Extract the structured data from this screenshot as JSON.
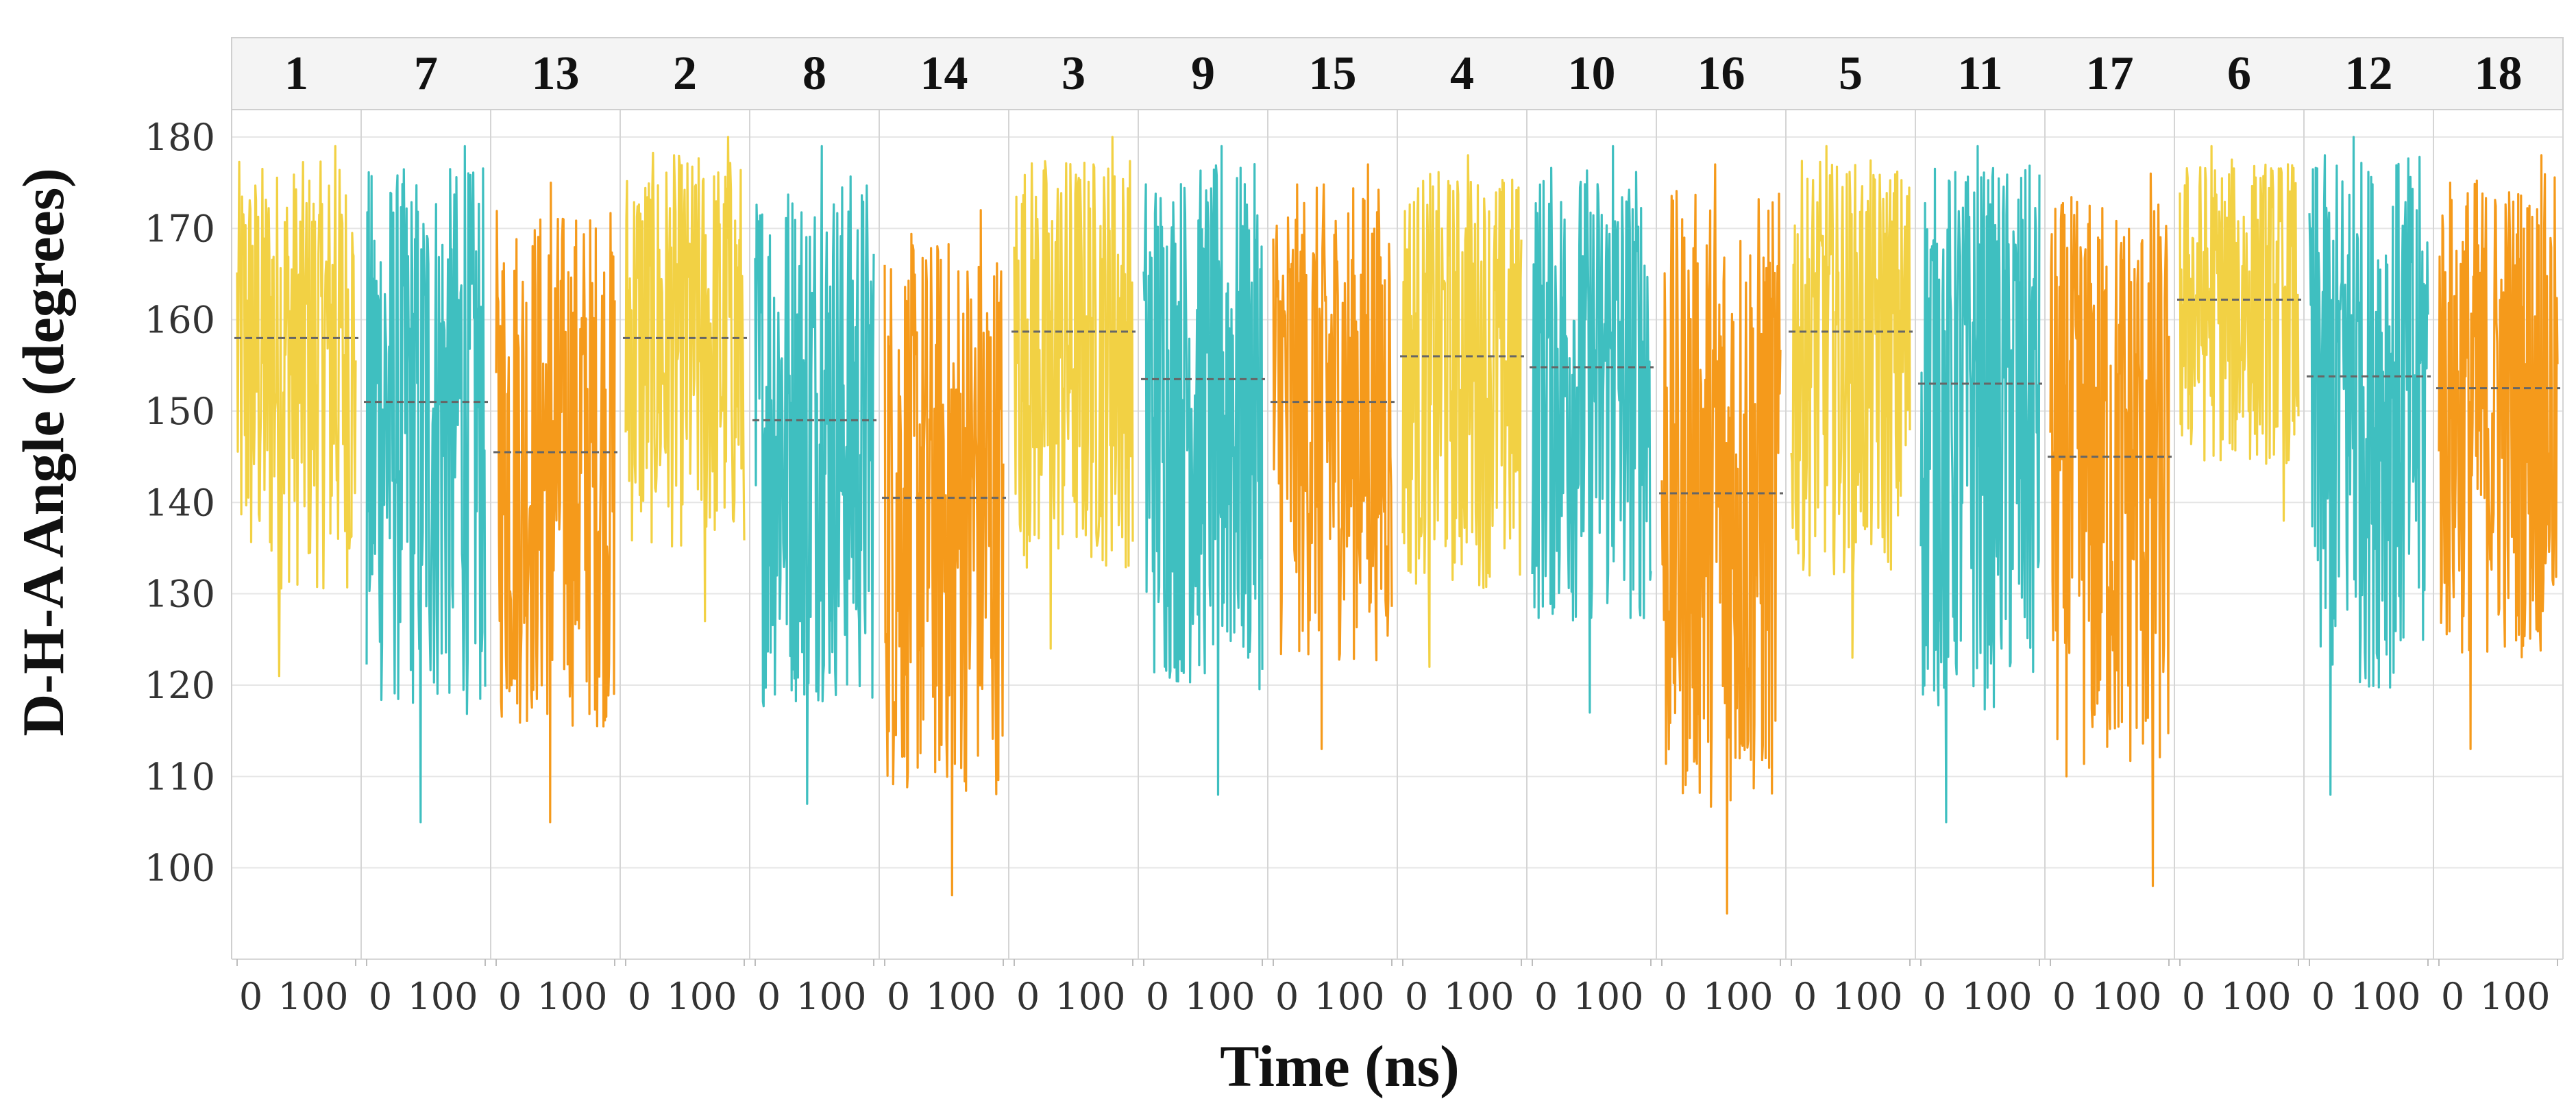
{
  "chart_data": {
    "type": "line",
    "title": "",
    "xlabel": "Time (ns)",
    "ylabel": "D-H-A Angle (degrees)",
    "ylim": [
      90,
      183
    ],
    "yticks": [
      100,
      110,
      120,
      130,
      140,
      150,
      160,
      170,
      180
    ],
    "xlim": [
      0,
      200
    ],
    "xticks": [
      0,
      100
    ],
    "grid": true,
    "legend": "none",
    "colors": {
      "yellow": "#F2D144",
      "teal": "#3FBFC0",
      "orange": "#F59A1B",
      "mean_line": "#666666"
    },
    "panels": [
      {
        "label": "1",
        "color": "#F2D144",
        "mean": 158.0,
        "max": 179,
        "min": 121
      },
      {
        "label": "7",
        "color": "#3FBFC0",
        "mean": 151.0,
        "max": 179,
        "min": 105
      },
      {
        "label": "13",
        "color": "#F59A1B",
        "mean": 145.5,
        "max": 175,
        "min": 105
      },
      {
        "label": "2",
        "color": "#F2D144",
        "mean": 158.0,
        "max": 180,
        "min": 127
      },
      {
        "label": "8",
        "color": "#3FBFC0",
        "mean": 149.0,
        "max": 179,
        "min": 107
      },
      {
        "label": "14",
        "color": "#F59A1B",
        "mean": 140.5,
        "max": 172,
        "min": 97
      },
      {
        "label": "3",
        "color": "#F2D144",
        "mean": 158.7,
        "max": 180,
        "min": 124
      },
      {
        "label": "9",
        "color": "#3FBFC0",
        "mean": 153.5,
        "max": 179,
        "min": 108
      },
      {
        "label": "15",
        "color": "#F59A1B",
        "mean": 151.0,
        "max": 177,
        "min": 113
      },
      {
        "label": "4",
        "color": "#F2D144",
        "mean": 156.0,
        "max": 178,
        "min": 122
      },
      {
        "label": "10",
        "color": "#3FBFC0",
        "mean": 154.8,
        "max": 179,
        "min": 117
      },
      {
        "label": "16",
        "color": "#F59A1B",
        "mean": 141.0,
        "max": 177,
        "min": 95
      },
      {
        "label": "5",
        "color": "#F2D144",
        "mean": 158.7,
        "max": 179,
        "min": 123
      },
      {
        "label": "11",
        "color": "#3FBFC0",
        "mean": 153.0,
        "max": 179,
        "min": 105
      },
      {
        "label": "17",
        "color": "#F59A1B",
        "mean": 145.0,
        "max": 176,
        "min": 98
      },
      {
        "label": "6",
        "color": "#F2D144",
        "mean": 162.2,
        "max": 179,
        "min": 138
      },
      {
        "label": "12",
        "color": "#3FBFC0",
        "mean": 153.8,
        "max": 180,
        "min": 108
      },
      {
        "label": "18",
        "color": "#F59A1B",
        "mean": 152.5,
        "max": 178,
        "min": 113
      }
    ]
  }
}
